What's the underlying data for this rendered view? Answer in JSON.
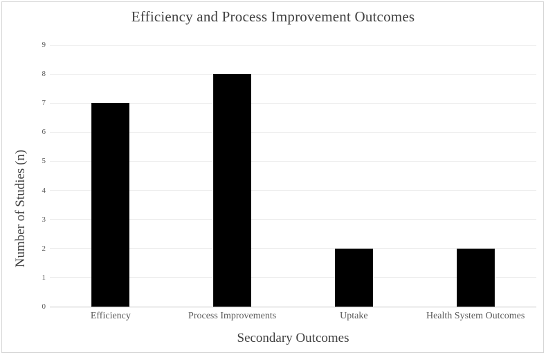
{
  "chart_data": {
    "type": "bar",
    "title": "Efficiency and Process Improvement Outcomes",
    "xlabel": "Secondary Outcomes",
    "ylabel": "Number of Studies (n)",
    "categories": [
      "Efficiency",
      "Process Improvements",
      "Uptake",
      "Health System Outcomes"
    ],
    "values": [
      7,
      8,
      2,
      2
    ],
    "ylim": [
      0,
      9
    ],
    "ytick_step": 1,
    "ytick_labels": [
      "0",
      "1",
      "2",
      "3",
      "4",
      "5",
      "6",
      "7",
      "8",
      "9"
    ],
    "grid": "horizontal",
    "legend": false,
    "colors": {
      "bar_fill": "#000000",
      "bar_border": "#141414",
      "gridline": "#eaeaea",
      "axis_line": "#c3c3c3",
      "tick_label": "#595959",
      "title_text": "#404040",
      "frame_border": "#d6d6d6",
      "background": "#ffffff"
    }
  }
}
